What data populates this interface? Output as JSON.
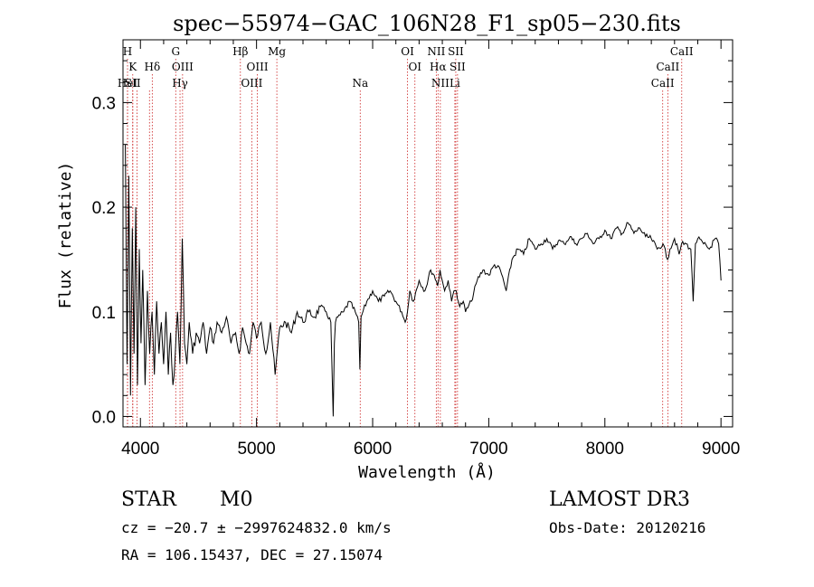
{
  "chart_data": {
    "type": "line",
    "title": "spec−55974−GAC_106N28_F1_sp05−230.fits",
    "xlabel": "Wavelength (Å)",
    "ylabel": "Flux (relative)",
    "xlim": [
      3850,
      9100
    ],
    "ylim": [
      -0.01,
      0.36
    ],
    "x_ticks": [
      4000,
      5000,
      6000,
      7000,
      8000,
      9000
    ],
    "y_ticks": [
      0.0,
      0.1,
      0.2,
      0.3
    ],
    "y_tick_labels": [
      "0.0",
      "0.1",
      "0.2",
      "0.3"
    ],
    "grid": false,
    "line_color": "#000000",
    "marker_line_color": "#cc2222",
    "spectrum": {
      "x": [
        3870,
        3885,
        3900,
        3915,
        3930,
        3945,
        3960,
        3975,
        3990,
        4005,
        4020,
        4040,
        4060,
        4080,
        4100,
        4120,
        4140,
        4160,
        4180,
        4200,
        4220,
        4240,
        4260,
        4280,
        4300,
        4320,
        4340,
        4360,
        4380,
        4400,
        4420,
        4450,
        4480,
        4510,
        4540,
        4570,
        4600,
        4630,
        4660,
        4700,
        4740,
        4780,
        4820,
        4850,
        4880,
        4910,
        4940,
        4970,
        5000,
        5040,
        5080,
        5120,
        5160,
        5200,
        5250,
        5300,
        5350,
        5400,
        5450,
        5500,
        5550,
        5600,
        5640,
        5660,
        5670,
        5680,
        5700,
        5750,
        5800,
        5850,
        5880,
        5890,
        5900,
        5950,
        6000,
        6050,
        6100,
        6150,
        6200,
        6250,
        6280,
        6300,
        6320,
        6350,
        6400,
        6450,
        6500,
        6530,
        6560,
        6580,
        6600,
        6620,
        6650,
        6680,
        6700,
        6720,
        6750,
        6780,
        6800,
        6850,
        6900,
        6950,
        7000,
        7050,
        7100,
        7150,
        7200,
        7250,
        7300,
        7350,
        7400,
        7450,
        7500,
        7550,
        7600,
        7650,
        7700,
        7750,
        7800,
        7850,
        7900,
        7950,
        8000,
        8050,
        8100,
        8150,
        8200,
        8250,
        8300,
        8350,
        8400,
        8450,
        8500,
        8540,
        8560,
        8600,
        8640,
        8660,
        8700,
        8740,
        8760,
        8780,
        8800,
        8850,
        8900,
        8950,
        8980,
        9000
      ],
      "y": [
        0.26,
        0.05,
        0.23,
        0.02,
        0.18,
        0.06,
        0.2,
        0.03,
        0.16,
        0.07,
        0.14,
        0.03,
        0.12,
        0.06,
        0.1,
        0.04,
        0.11,
        0.06,
        0.09,
        0.05,
        0.1,
        0.04,
        0.08,
        0.03,
        0.06,
        0.1,
        0.05,
        0.17,
        0.07,
        0.05,
        0.09,
        0.06,
        0.08,
        0.07,
        0.09,
        0.06,
        0.085,
        0.07,
        0.09,
        0.08,
        0.095,
        0.07,
        0.08,
        0.06,
        0.085,
        0.07,
        0.06,
        0.09,
        0.075,
        0.09,
        0.06,
        0.09,
        0.04,
        0.085,
        0.09,
        0.08,
        0.1,
        0.09,
        0.1,
        0.095,
        0.105,
        0.1,
        0.09,
        0.0,
        0.07,
        0.09,
        0.095,
        0.1,
        0.11,
        0.1,
        0.09,
        0.045,
        0.095,
        0.11,
        0.12,
        0.11,
        0.115,
        0.12,
        0.11,
        0.1,
        0.09,
        0.1,
        0.12,
        0.11,
        0.13,
        0.12,
        0.14,
        0.135,
        0.125,
        0.14,
        0.13,
        0.12,
        0.13,
        0.11,
        0.12,
        0.12,
        0.105,
        0.11,
        0.1,
        0.11,
        0.13,
        0.14,
        0.135,
        0.145,
        0.14,
        0.12,
        0.15,
        0.16,
        0.155,
        0.17,
        0.16,
        0.165,
        0.17,
        0.16,
        0.168,
        0.165,
        0.172,
        0.165,
        0.17,
        0.175,
        0.165,
        0.17,
        0.178,
        0.17,
        0.18,
        0.175,
        0.185,
        0.175,
        0.18,
        0.172,
        0.17,
        0.16,
        0.165,
        0.15,
        0.16,
        0.17,
        0.155,
        0.165,
        0.165,
        0.16,
        0.11,
        0.165,
        0.17,
        0.165,
        0.16,
        0.17,
        0.165,
        0.13
      ]
    },
    "line_markers": [
      {
        "x": 3889,
        "label": "H",
        "row": 1
      },
      {
        "x": 3934,
        "label": "K",
        "row": 2
      },
      {
        "x": 3889,
        "label": "HeI",
        "row": 3
      },
      {
        "x": 3934,
        "label": "SII",
        "row": 3
      },
      {
        "x": 3970,
        "label": "",
        "row": 3
      },
      {
        "x": 4102,
        "label": "Hδ",
        "row": 2
      },
      {
        "x": 4078,
        "label": "",
        "row": 3
      },
      {
        "x": 4304,
        "label": "G",
        "row": 1
      },
      {
        "x": 4363,
        "label": "OIII",
        "row": 2
      },
      {
        "x": 4341,
        "label": "Hγ",
        "row": 3
      },
      {
        "x": 4861,
        "label": "Hβ",
        "row": 1
      },
      {
        "x": 4959,
        "label": "OIII",
        "row": 3
      },
      {
        "x": 5007,
        "label": "OIII",
        "row": 2
      },
      {
        "x": 5175,
        "label": "Mg",
        "row": 1
      },
      {
        "x": 5893,
        "label": "Na",
        "row": 3
      },
      {
        "x": 6300,
        "label": "OI",
        "row": 1
      },
      {
        "x": 6364,
        "label": "OI",
        "row": 2
      },
      {
        "x": 6548,
        "label": "NII",
        "row": 1
      },
      {
        "x": 6563,
        "label": "Hα",
        "row": 2
      },
      {
        "x": 6583,
        "label": "NII",
        "row": 3
      },
      {
        "x": 6716,
        "label": "SII",
        "row": 1
      },
      {
        "x": 6731,
        "label": "SII",
        "row": 2
      },
      {
        "x": 6708,
        "label": "Li",
        "row": 3
      },
      {
        "x": 8498,
        "label": "CaII",
        "row": 3
      },
      {
        "x": 8542,
        "label": "CaII",
        "row": 2
      },
      {
        "x": 8662,
        "label": "CaII",
        "row": 1
      }
    ]
  },
  "info": {
    "object_class": "STAR",
    "subclass": "M0",
    "survey": "LAMOST DR3",
    "cz_line": "cz = −20.7 ± −2997624832.0 km/s",
    "obs_date": "Obs-Date: 20120216",
    "radec": "RA = 106.15437, DEC =  27.15074"
  }
}
